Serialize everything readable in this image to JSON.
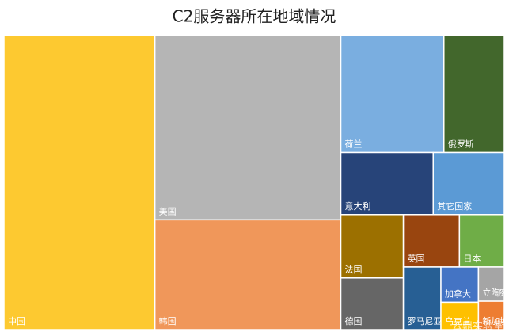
{
  "chart_data": {
    "type": "treemap",
    "title": "C2服务器所在地域情况",
    "categories": [
      "中国",
      "美国",
      "韩国",
      "荷兰",
      "俄罗斯",
      "意大利",
      "其它国家",
      "法国",
      "德国",
      "英国",
      "日本",
      "罗马尼亚",
      "加拿大",
      "乌克兰",
      "立陶宛",
      "新加坡"
    ],
    "values": [
      30.2,
      23.3,
      13.9,
      8.2,
      4.8,
      3.9,
      3.0,
      2.7,
      2.2,
      2.0,
      1.6,
      1.6,
      0.9,
      0.7,
      0.6,
      0.5
    ],
    "colors": [
      "#fdc930",
      "#b5b5b5",
      "#f0975a",
      "#7aaee0",
      "#42672c",
      "#274479",
      "#5b9ad5",
      "#9c7000",
      "#666666",
      "#99450f",
      "#6fad47",
      "#275f94",
      "#4474c4",
      "#fec000",
      "#a5a5a5",
      "#ed7d31"
    ],
    "watermark": "云鼎实验室"
  }
}
